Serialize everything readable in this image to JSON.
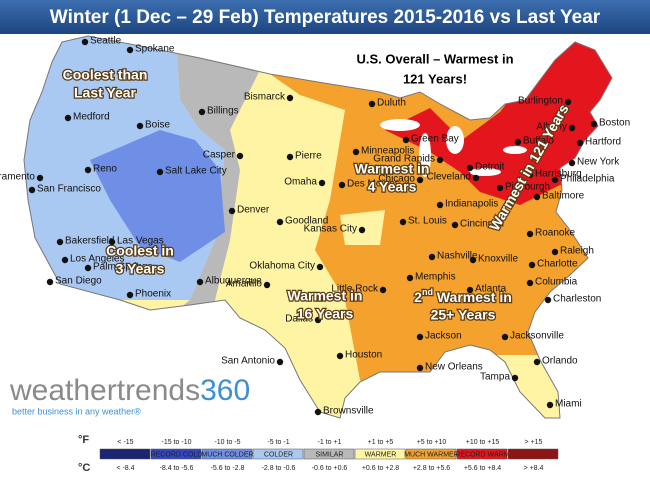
{
  "header": {
    "title": "Winter (1 Dec – 29 Feb) Temperatures 2015-2016 vs Last Year"
  },
  "headline": [
    "U.S. Overall – Warmest in",
    "121 Years!"
  ],
  "annotations": [
    {
      "lines": [
        "Coolest than",
        "Last Year"
      ]
    },
    {
      "lines": [
        "Coolest in",
        "3 Years"
      ]
    },
    {
      "lines": [
        "Warmest in",
        "16 Years"
      ]
    },
    {
      "lines": [
        "Warmest in",
        "4 Years"
      ]
    },
    {
      "prefix": "2",
      "superscript": "nd",
      "lines": [
        " Warmest in",
        "25+ Years"
      ]
    },
    {
      "lines": [
        "Warmest in 121 Years"
      ]
    }
  ],
  "cities": [
    "Seattle",
    "Spokane",
    "Medford",
    "Boise",
    "Billings",
    "Bismarck",
    "Duluth",
    "Sacramento",
    "Reno",
    "San Francisco",
    "Salt Lake City",
    "Casper",
    "Pierre",
    "Minneapolis",
    "Green Bay",
    "Grand Rapids",
    "Detroit",
    "Buffalo",
    "Burlington",
    "Albany",
    "Boston",
    "Hartford",
    "New York",
    "Philadelphia",
    "Harrisburg",
    "Baltimore",
    "Pittsburgh",
    "Cleveland",
    "Chicago",
    "Des Moines",
    "Omaha",
    "Denver",
    "Goodland",
    "Bakersfield",
    "Las Vegas",
    "Los Angeles",
    "Palm Springs",
    "San Diego",
    "Phoenix",
    "Albuquerque",
    "Amarillo",
    "Oklahoma City",
    "Kansas City",
    "St. Louis",
    "Indianapolis",
    "Cincinnati",
    "Roanoke",
    "Raleigh",
    "Nashville",
    "Knoxville",
    "Charlotte",
    "Columbia",
    "Charleston",
    "Little Rock",
    "Memphis",
    "Atlanta",
    "Dallas",
    "Jackson",
    "San Antonio",
    "Houston",
    "New Orleans",
    "Jacksonville",
    "Orlando",
    "Tampa",
    "Miami",
    "Brownsville"
  ],
  "logo": {
    "name": "weathertrends",
    "number": "360",
    "tagline": "better business in any weather®"
  },
  "legend": {
    "unit_f": "°F",
    "unit_c": "°C",
    "fahrenheit": [
      "< -15",
      "-15 to -10",
      "-10 to -5",
      "-5 to -1",
      "-1 to +1",
      "+1 to +5",
      "+5 to +10",
      "+10 to +15",
      "> +15"
    ],
    "labels": [
      null,
      "RECORD COLD",
      "MUCH COLDER",
      "COLDER",
      "SIMILAR",
      "WARMER",
      "MUCH WARMER",
      "RECORD WARM",
      null
    ],
    "celsius": [
      "< -8.4",
      "-8.4 to -5.6",
      "-5.6 to -2.8",
      "-2.8 to -0.6",
      "-0.6 to +0.6",
      "+0.6 to +2.8",
      "+2.8 to +5.6",
      "+5.6 to +8.4",
      "> +8.4"
    ],
    "colors": [
      "#1b2470",
      "#3346c4",
      "#6f8fe6",
      "#a9c8f2",
      "#b9b9b9",
      "#fff4a3",
      "#f4a12e",
      "#e3161e",
      "#8e1515"
    ]
  }
}
